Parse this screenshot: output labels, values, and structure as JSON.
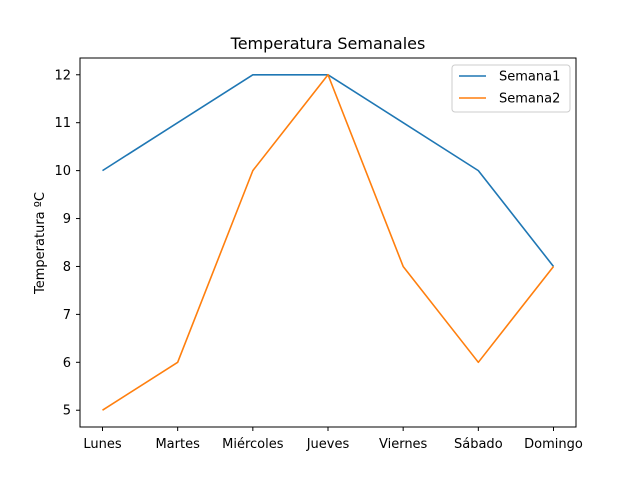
{
  "chart_data": {
    "type": "line",
    "title": "Temperatura Semanales",
    "xlabel": "",
    "ylabel": "Temperatura ºC",
    "categories": [
      "Lunes",
      "Martes",
      "Miércoles",
      "Jueves",
      "Viernes",
      "Sábado",
      "Domingo"
    ],
    "series": [
      {
        "name": "Semana1",
        "values": [
          10,
          11,
          12,
          12,
          11,
          10,
          8
        ],
        "color": "#1f77b4"
      },
      {
        "name": "Semana2",
        "values": [
          5,
          6,
          10,
          12,
          8,
          6,
          8
        ],
        "color": "#ff7f0e"
      }
    ],
    "ylim": [
      4.65,
      12.35
    ],
    "yticks": [
      5,
      6,
      7,
      8,
      9,
      10,
      11,
      12
    ],
    "grid": false,
    "legend_position": "top-right"
  }
}
